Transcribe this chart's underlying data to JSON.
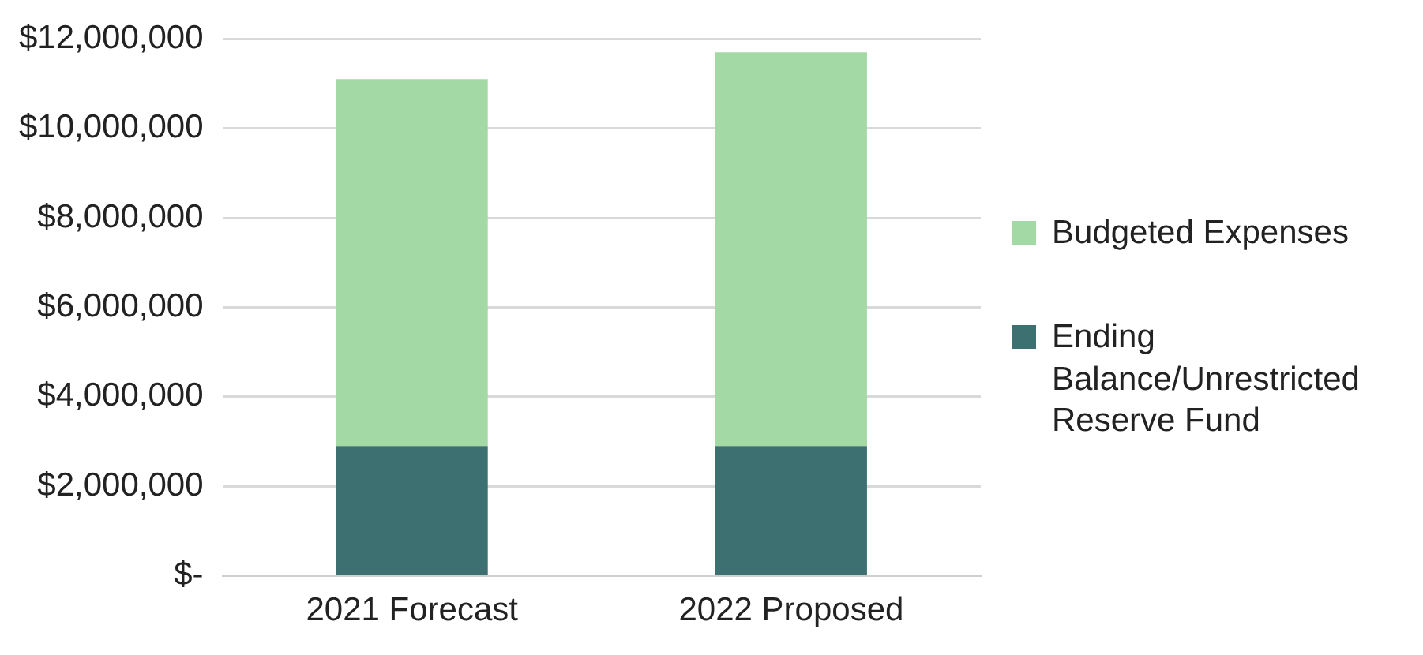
{
  "chart_data": {
    "type": "bar",
    "stacked": true,
    "categories": [
      "2021 Forecast",
      "2022 Proposed"
    ],
    "series": [
      {
        "name": "Ending Balance/Unrestricted Reserve Fund",
        "color": "#3d7070",
        "values": [
          2900000,
          2900000
        ]
      },
      {
        "name": "Budgeted Expenses",
        "color": "#a3d9a5",
        "values": [
          8200000,
          8800000
        ]
      }
    ],
    "ylim": [
      0,
      12000000
    ],
    "yticks": [
      {
        "value": 0,
        "label": "$-"
      },
      {
        "value": 2000000,
        "label": "$2,000,000"
      },
      {
        "value": 4000000,
        "label": "$4,000,000"
      },
      {
        "value": 6000000,
        "label": "$6,000,000"
      },
      {
        "value": 8000000,
        "label": "$8,000,000"
      },
      {
        "value": 10000000,
        "label": "$10,000,000"
      },
      {
        "value": 12000000,
        "label": "$12,000,000"
      }
    ],
    "grid": "y",
    "legend": "right"
  }
}
